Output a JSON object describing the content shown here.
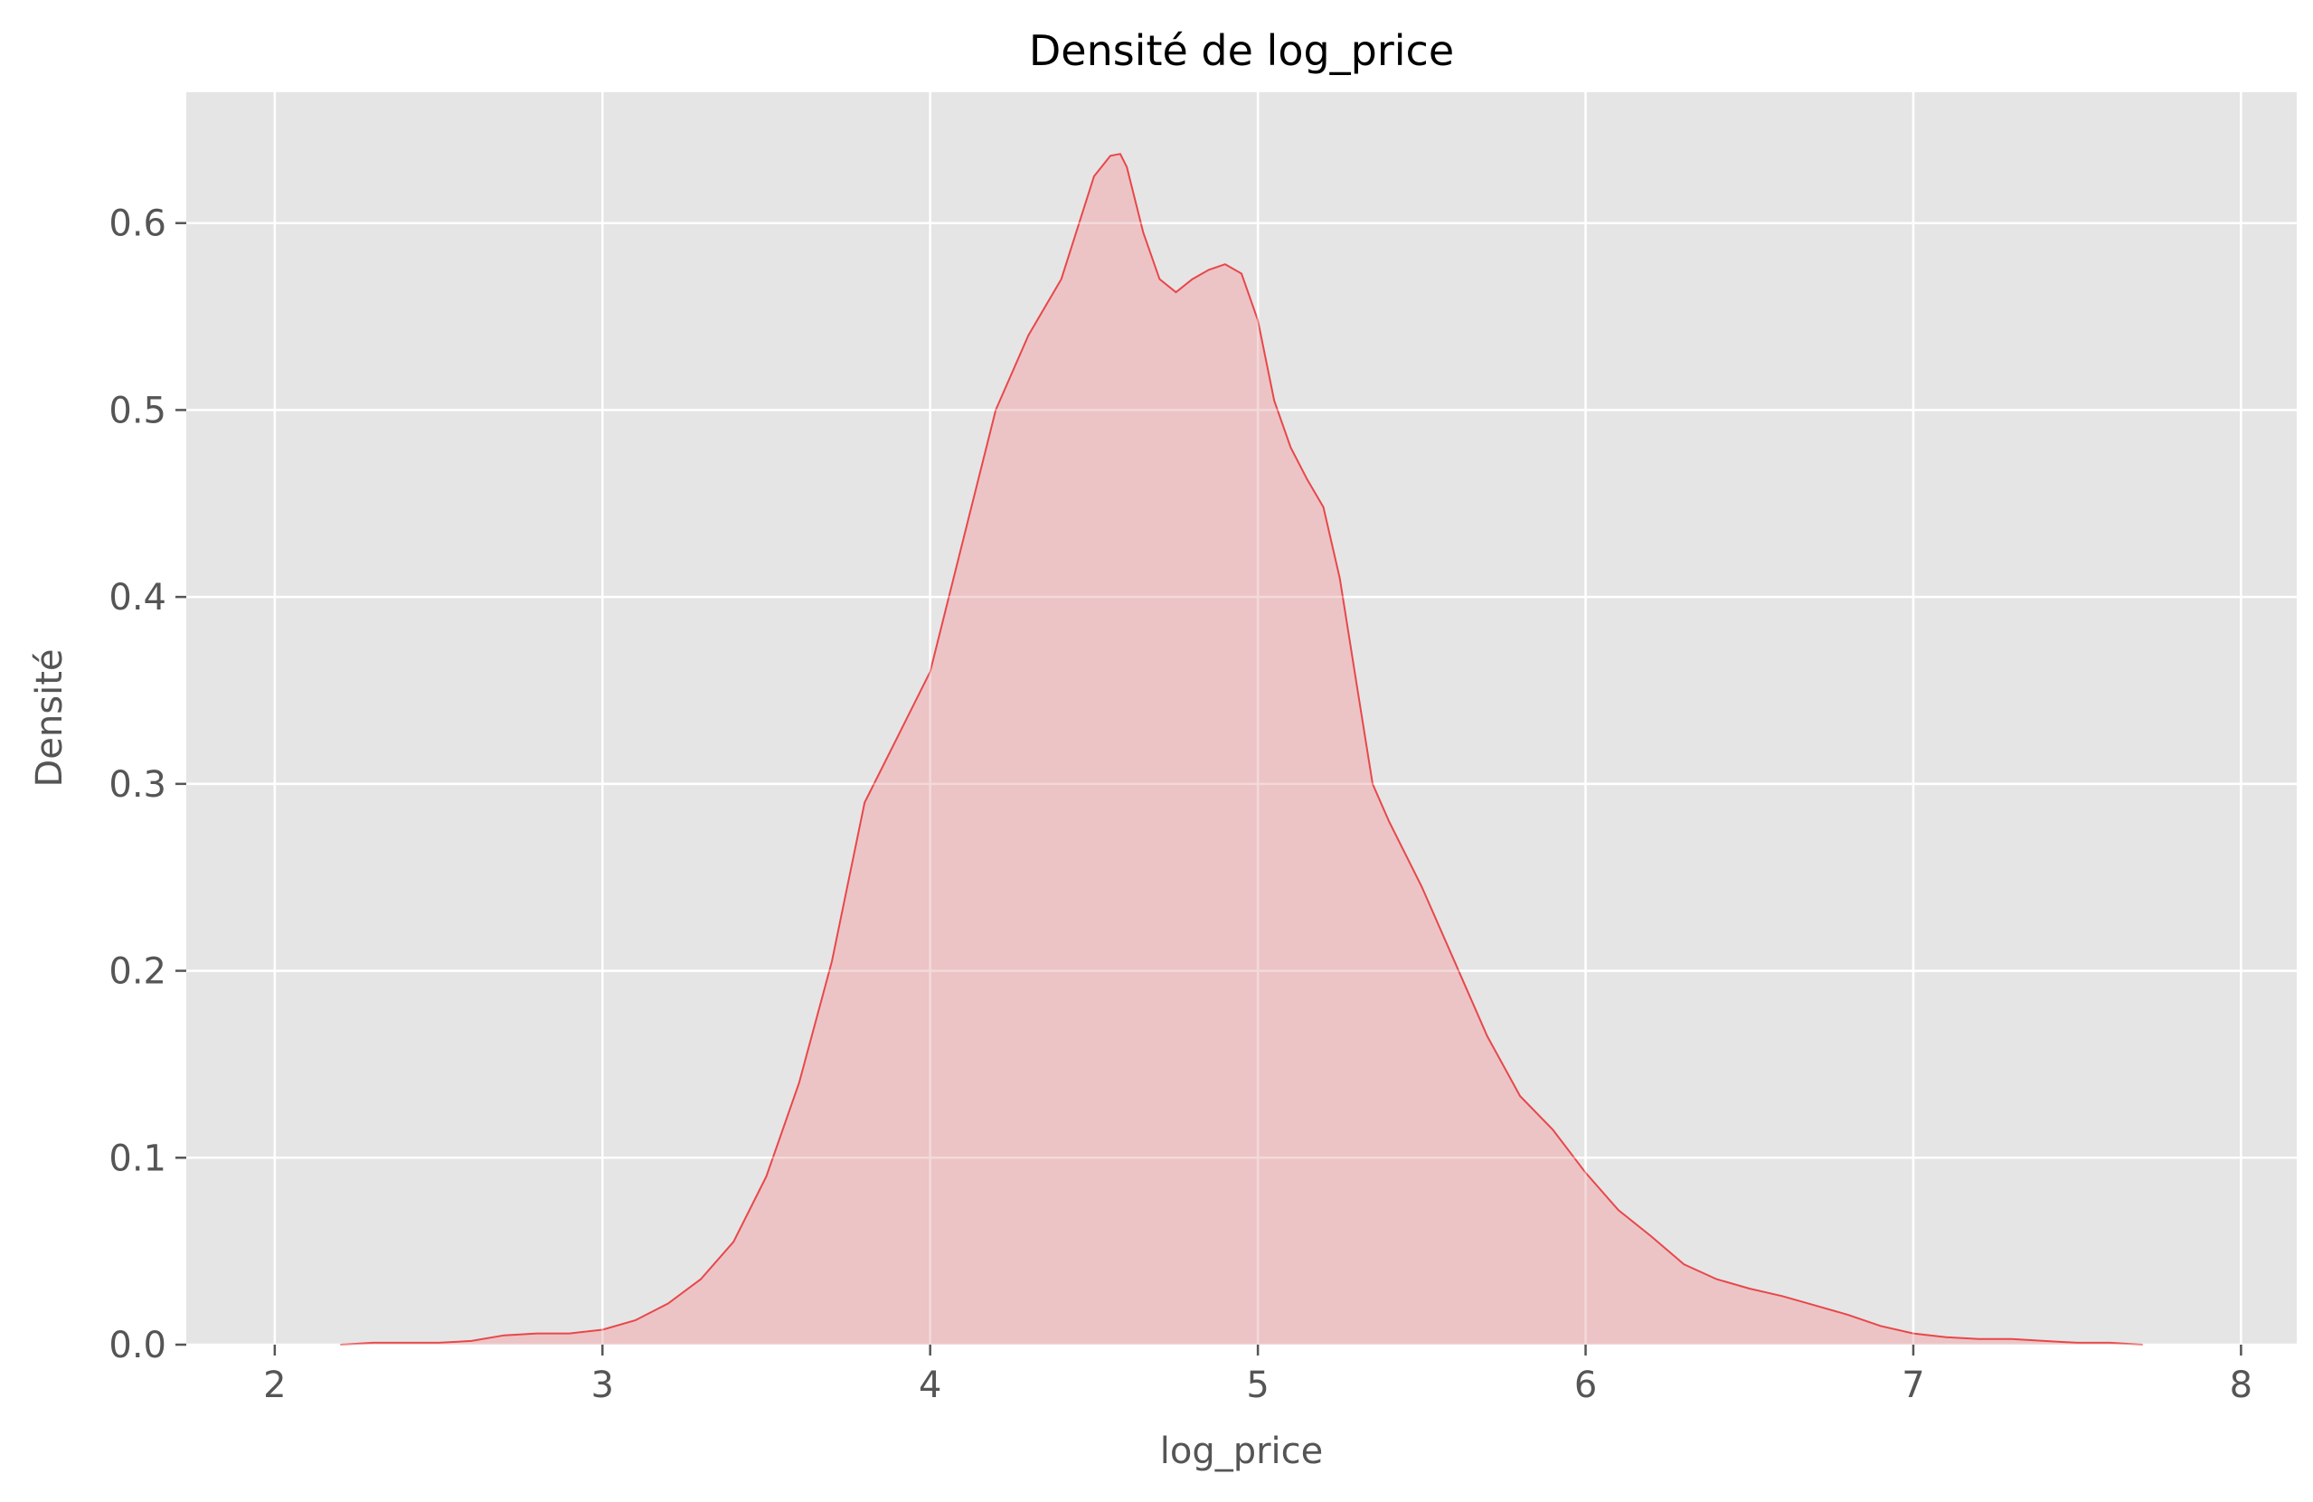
{
  "chart_data": {
    "type": "area",
    "title": "Densité de log_price",
    "xlabel": "log_price",
    "ylabel": "Densité",
    "xlim": [
      1.73,
      8.17
    ],
    "ylim": [
      0,
      0.67
    ],
    "xticks": [
      2,
      3,
      4,
      5,
      6,
      7,
      8
    ],
    "yticks": [
      0.0,
      0.1,
      0.2,
      0.3,
      0.4,
      0.5,
      0.6
    ],
    "ytick_labels": [
      "0.0",
      "0.1",
      "0.2",
      "0.3",
      "0.4",
      "0.5",
      "0.6"
    ],
    "grid": true,
    "line_color": "#e8474a",
    "fill_color": "#ecc2c4",
    "background_color": "#e5e5e5",
    "series": [
      {
        "x": [
          2.2,
          2.3,
          2.4,
          2.5,
          2.6,
          2.7,
          2.8,
          2.9,
          3.0,
          3.1,
          3.2,
          3.3,
          3.4,
          3.5,
          3.6,
          3.7,
          3.8,
          3.9,
          4.0,
          4.1,
          4.2,
          4.3,
          4.4,
          4.5,
          4.55,
          4.58,
          4.6,
          4.65,
          4.7,
          4.75,
          4.8,
          4.85,
          4.9,
          4.95,
          5.0,
          5.05,
          5.1,
          5.15,
          5.2,
          5.25,
          5.3,
          5.35,
          5.4,
          5.5,
          5.6,
          5.7,
          5.8,
          5.9,
          6.0,
          6.1,
          6.2,
          6.3,
          6.4,
          6.5,
          6.6,
          6.7,
          6.8,
          6.9,
          7.0,
          7.1,
          7.2,
          7.3,
          7.4,
          7.5,
          7.6,
          7.7
        ],
        "y": [
          0.0,
          0.001,
          0.001,
          0.001,
          0.002,
          0.005,
          0.006,
          0.006,
          0.008,
          0.013,
          0.022,
          0.035,
          0.055,
          0.09,
          0.14,
          0.205,
          0.29,
          0.325,
          0.36,
          0.43,
          0.5,
          0.54,
          0.57,
          0.625,
          0.636,
          0.637,
          0.63,
          0.595,
          0.57,
          0.563,
          0.57,
          0.575,
          0.578,
          0.573,
          0.548,
          0.505,
          0.48,
          0.463,
          0.448,
          0.41,
          0.355,
          0.3,
          0.28,
          0.245,
          0.205,
          0.165,
          0.133,
          0.115,
          0.092,
          0.072,
          0.058,
          0.043,
          0.035,
          0.03,
          0.026,
          0.021,
          0.016,
          0.01,
          0.006,
          0.004,
          0.003,
          0.003,
          0.002,
          0.001,
          0.001,
          0.0
        ]
      }
    ]
  }
}
